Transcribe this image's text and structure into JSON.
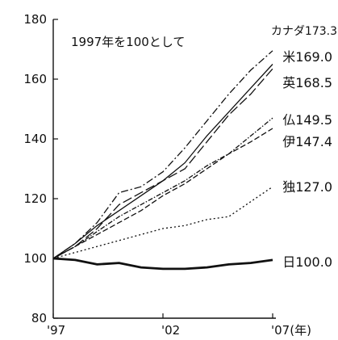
{
  "chart_data": {
    "type": "line",
    "note": "1997年を100として",
    "x": [
      1997,
      1998,
      1999,
      2000,
      2001,
      2002,
      2003,
      2004,
      2005,
      2006,
      2007
    ],
    "x_tick_values": [
      1997,
      2002,
      2007
    ],
    "x_tick_labels": [
      "'97",
      "'02",
      "'07(年)"
    ],
    "y_ticks": [
      80,
      100,
      120,
      140,
      160,
      180
    ],
    "ylim": [
      80,
      180
    ],
    "xlim": [
      1997,
      2007
    ],
    "grid": false,
    "series": [
      {
        "label": "カナダ173.3",
        "end_value": 173.3,
        "values": [
          100,
          105,
          112,
          122,
          124,
          129,
          137,
          146,
          155,
          163,
          169.5
        ],
        "dash": "9,3,2,3"
      },
      {
        "label": "米169.0",
        "end_value": 169.0,
        "values": [
          100,
          105,
          111,
          116,
          121,
          126,
          132,
          141,
          149,
          157,
          165
        ],
        "dash": ""
      },
      {
        "label": "英168.5",
        "end_value": 168.5,
        "values": [
          100,
          104,
          110,
          118,
          122,
          126,
          130,
          139,
          148,
          155,
          163.5
        ],
        "dash": "12,4"
      },
      {
        "label": "仏149.5",
        "end_value": 149.5,
        "values": [
          100,
          104,
          109,
          114,
          118,
          122,
          126,
          131,
          135,
          141,
          147
        ],
        "dash": "6,2,1.5,2"
      },
      {
        "label": "伊147.4",
        "end_value": 147.4,
        "values": [
          100,
          104,
          108,
          112,
          116,
          121,
          125,
          130,
          135,
          139,
          143.5
        ],
        "dash": "7,3"
      },
      {
        "label": "独127.0",
        "end_value": 127.0,
        "values": [
          100,
          102,
          104,
          106,
          108,
          110,
          111,
          113,
          114,
          119,
          124
        ],
        "dash": "2,3"
      },
      {
        "label": "日100.0",
        "end_value": 100.0,
        "values": [
          100,
          99.5,
          98,
          98.5,
          97,
          96.5,
          96.5,
          97,
          98,
          98.5,
          99.5
        ],
        "dash": "",
        "bold": true
      }
    ]
  }
}
